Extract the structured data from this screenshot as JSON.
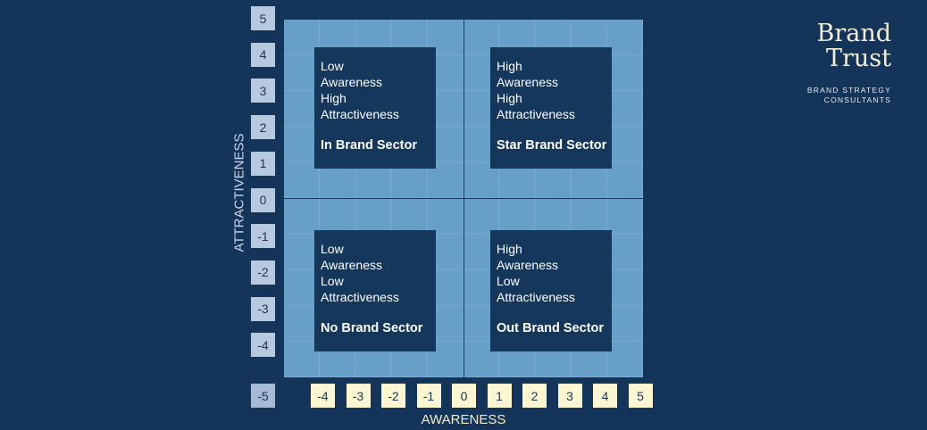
{
  "axes": {
    "x_label": "AWARENESS",
    "y_label": "ATTRACTIVENESS",
    "x_ticks": [
      "-4",
      "-3",
      "-2",
      "-1",
      "0",
      "1",
      "2",
      "3",
      "4",
      "5"
    ],
    "y_ticks": [
      "5",
      "4",
      "3",
      "2",
      "1",
      "0",
      "-1",
      "-2",
      "-3",
      "-4",
      "-5"
    ]
  },
  "sectors": [
    {
      "lines": [
        "Low",
        "Awareness",
        "High",
        "Attractiveness"
      ],
      "name": "In Brand Sector"
    },
    {
      "lines": [
        "High",
        "Awareness",
        "High",
        "Attractiveness"
      ],
      "name": "Star Brand Sector"
    },
    {
      "lines": [
        "Low",
        "Awareness",
        "Low",
        "Attractiveness"
      ],
      "name": "No Brand Sector"
    },
    {
      "lines": [
        "High",
        "Awareness",
        "Low",
        "Attractiveness"
      ],
      "name": "Out Brand Sector"
    }
  ],
  "logo": {
    "line1": "Brand",
    "line2": "Trust",
    "sub1": "BRAND STRATEGY",
    "sub2": "CONSULTANTS"
  },
  "colors": {
    "background": "#143559",
    "plot": "#66a0c9",
    "sector": "#15375b",
    "y_tick": "#b7c9df",
    "x_tick": "#fdf6d3"
  }
}
